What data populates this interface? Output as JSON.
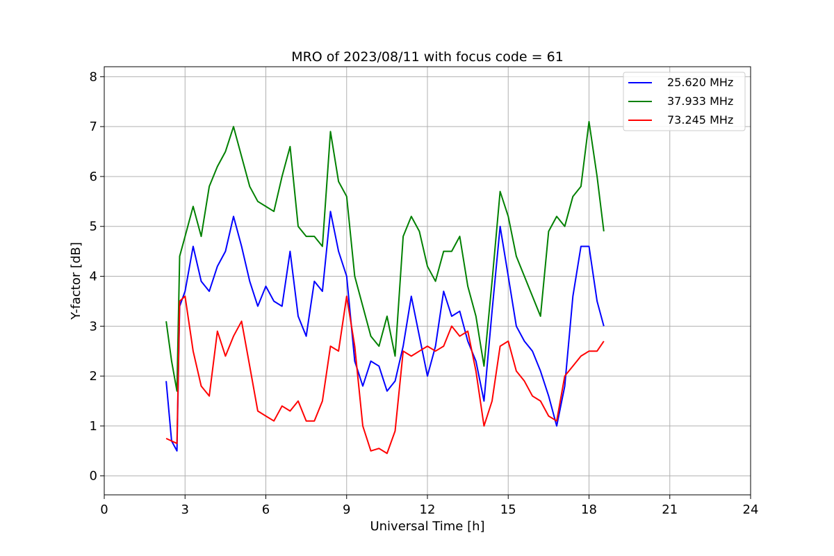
{
  "chart_data": {
    "type": "line",
    "title": "MRO of 2023/08/11 with focus code = 61",
    "xlabel": "Universal Time [h]",
    "ylabel": "Y-factor [dB]",
    "xlim": [
      0,
      24
    ],
    "ylim": [
      -0.38,
      8.2
    ],
    "xticks": [
      0,
      3,
      6,
      9,
      12,
      15,
      18,
      21,
      24
    ],
    "yticks": [
      0,
      1,
      2,
      3,
      4,
      5,
      6,
      7,
      8
    ],
    "grid": true,
    "legend_position": "top-right",
    "series": [
      {
        "name": "25.620 MHz",
        "color": "#0000ff",
        "x": [
          2.3,
          2.5,
          2.7,
          2.8,
          3.0,
          3.3,
          3.6,
          3.9,
          4.2,
          4.5,
          4.8,
          5.1,
          5.4,
          5.7,
          6.0,
          6.3,
          6.6,
          6.9,
          7.2,
          7.5,
          7.8,
          8.1,
          8.4,
          8.7,
          9.0,
          9.3,
          9.6,
          9.9,
          10.2,
          10.5,
          10.8,
          11.1,
          11.4,
          11.7,
          12.0,
          12.3,
          12.6,
          12.9,
          13.2,
          13.5,
          13.8,
          14.1,
          14.4,
          14.7,
          15.0,
          15.3,
          15.6,
          15.9,
          16.2,
          16.5,
          16.8,
          17.1,
          17.4,
          17.7,
          18.0,
          18.3,
          18.55
        ],
        "y": [
          1.9,
          0.7,
          0.5,
          3.4,
          3.7,
          4.6,
          3.9,
          3.7,
          4.2,
          4.5,
          5.2,
          4.6,
          3.9,
          3.4,
          3.8,
          3.5,
          3.4,
          4.5,
          3.2,
          2.8,
          3.9,
          3.7,
          5.3,
          4.5,
          4.0,
          2.3,
          1.8,
          2.3,
          2.2,
          1.7,
          1.9,
          2.6,
          3.6,
          2.8,
          2.0,
          2.6,
          3.7,
          3.2,
          3.3,
          2.7,
          2.3,
          1.5,
          3.3,
          5.0,
          4.0,
          3.0,
          2.7,
          2.5,
          2.1,
          1.6,
          1.0,
          1.8,
          3.6,
          4.6,
          4.6,
          3.5,
          3.0
        ]
      },
      {
        "name": "37.933 MHz",
        "color": "#008000",
        "x": [
          2.3,
          2.5,
          2.7,
          2.8,
          3.0,
          3.3,
          3.6,
          3.9,
          4.2,
          4.5,
          4.8,
          5.1,
          5.4,
          5.7,
          6.0,
          6.3,
          6.6,
          6.9,
          7.2,
          7.5,
          7.8,
          8.1,
          8.4,
          8.7,
          9.0,
          9.3,
          9.6,
          9.9,
          10.2,
          10.5,
          10.8,
          11.1,
          11.4,
          11.7,
          12.0,
          12.3,
          12.6,
          12.9,
          13.2,
          13.5,
          13.8,
          14.1,
          14.4,
          14.7,
          15.0,
          15.3,
          15.6,
          15.9,
          16.2,
          16.5,
          16.8,
          17.1,
          17.4,
          17.7,
          18.0,
          18.3,
          18.55
        ],
        "y": [
          3.1,
          2.3,
          1.7,
          4.4,
          4.8,
          5.4,
          4.8,
          5.8,
          6.2,
          6.5,
          7.0,
          6.4,
          5.8,
          5.5,
          5.4,
          5.3,
          6.0,
          6.6,
          5.0,
          4.8,
          4.8,
          4.6,
          6.9,
          5.9,
          5.6,
          4.0,
          3.4,
          2.8,
          2.6,
          3.2,
          2.4,
          4.8,
          5.2,
          4.9,
          4.2,
          3.9,
          4.5,
          4.5,
          4.8,
          3.8,
          3.2,
          2.2,
          3.9,
          5.7,
          5.2,
          4.4,
          4.0,
          3.6,
          3.2,
          4.9,
          5.2,
          5.0,
          5.6,
          5.8,
          7.1,
          6.0,
          4.9
        ]
      },
      {
        "name": "73.245 MHz",
        "color": "#ff0000",
        "x": [
          2.3,
          2.5,
          2.7,
          2.8,
          3.0,
          3.3,
          3.6,
          3.9,
          4.2,
          4.5,
          4.8,
          5.1,
          5.4,
          5.7,
          6.0,
          6.3,
          6.6,
          6.9,
          7.2,
          7.5,
          7.8,
          8.1,
          8.4,
          8.7,
          9.0,
          9.3,
          9.6,
          9.9,
          10.2,
          10.5,
          10.8,
          11.1,
          11.4,
          11.7,
          12.0,
          12.3,
          12.6,
          12.9,
          13.2,
          13.5,
          13.8,
          14.1,
          14.4,
          14.7,
          15.0,
          15.3,
          15.6,
          15.9,
          16.2,
          16.5,
          16.8,
          17.1,
          17.4,
          17.7,
          18.0,
          18.3,
          18.55
        ],
        "y": [
          0.75,
          0.7,
          0.65,
          3.5,
          3.6,
          2.5,
          1.8,
          1.6,
          2.9,
          2.4,
          2.8,
          3.1,
          2.2,
          1.3,
          1.2,
          1.1,
          1.4,
          1.3,
          1.5,
          1.1,
          1.1,
          1.5,
          2.6,
          2.5,
          3.6,
          2.6,
          1.0,
          0.5,
          0.55,
          0.45,
          0.9,
          2.5,
          2.4,
          2.5,
          2.6,
          2.5,
          2.6,
          3.0,
          2.8,
          2.9,
          2.1,
          1.0,
          1.5,
          2.6,
          2.7,
          2.1,
          1.9,
          1.6,
          1.5,
          1.2,
          1.1,
          2.0,
          2.2,
          2.4,
          2.5,
          2.5,
          2.7
        ]
      }
    ]
  }
}
